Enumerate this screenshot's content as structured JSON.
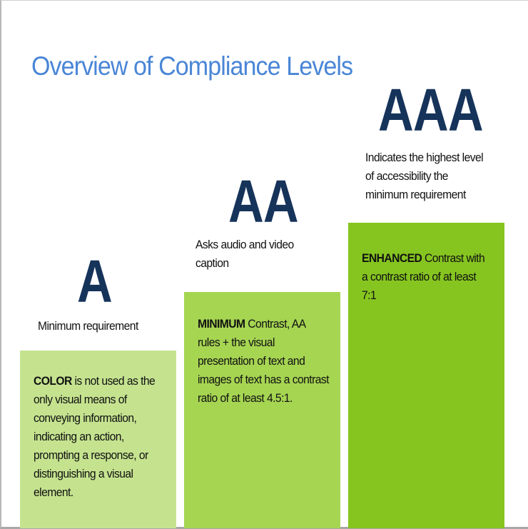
{
  "title": "Overview of Compliance Levels",
  "levels": [
    {
      "name": "A",
      "caption": "Minimum requirement",
      "keyword": "COLOR",
      "description": " is not used as the only visual means of conveying information, indicating an action, prompting a response, or distinguishing a visual element.",
      "color": "#c5e38f"
    },
    {
      "name": "AA",
      "caption": "Asks audio and video caption",
      "keyword": "MINIMUM",
      "description": " Contrast, AA rules + the visual presentation of text and images of text has a contrast ratio of at least 4.5:1.",
      "color": "#a6d552"
    },
    {
      "name": "AAA",
      "caption": "Indicates the highest level of accessibility the minimum requirement",
      "keyword": "ENHANCED",
      "description": " Contrast with a contrast ratio of at least 7:1",
      "color": "#86c520"
    }
  ],
  "level_letter_color": "#16335a",
  "title_color": "#4a86d6"
}
